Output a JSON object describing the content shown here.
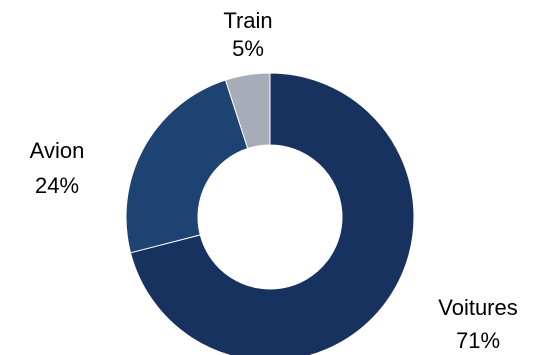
{
  "chart_data": {
    "type": "pie",
    "variant": "donut",
    "title": "",
    "slices": [
      {
        "label": "Voitures",
        "value": 71,
        "value_label": "71%",
        "color": "#17325e"
      },
      {
        "label": "Avion",
        "value": 24,
        "value_label": "24%",
        "color": "#1d4373"
      },
      {
        "label": "Train",
        "value": 5,
        "value_label": "5%",
        "color": "#a6adb8"
      }
    ],
    "start_angle": "12 o'clock",
    "direction": "clockwise",
    "legend": "none",
    "labels_position": "outside"
  }
}
